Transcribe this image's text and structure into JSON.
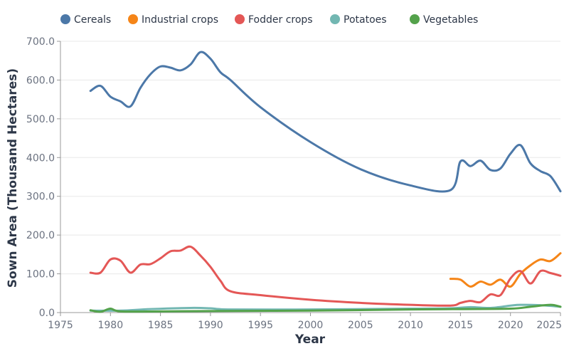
{
  "chart_data": {
    "type": "line",
    "title": "",
    "xlabel": "Year",
    "ylabel": "Sown Area (Thousand Hectares)",
    "xlim": [
      1975,
      2025
    ],
    "ylim": [
      0,
      700
    ],
    "xticks": [
      1975,
      1980,
      1985,
      1990,
      1995,
      2000,
      2005,
      2010,
      2015,
      2020,
      2025
    ],
    "yticks": [
      0,
      100,
      200,
      300,
      400,
      500,
      600,
      700
    ],
    "ytick_labels": [
      "0.0",
      "100.0",
      "200.0",
      "300.0",
      "400.0",
      "500.0",
      "600.0",
      "700.0"
    ],
    "grid": true,
    "legend_position": "top",
    "series": [
      {
        "name": "Cereals",
        "color": "#4c78a8",
        "points": [
          [
            1978,
            572
          ],
          [
            1979,
            585
          ],
          [
            1980,
            557
          ],
          [
            1981,
            545
          ],
          [
            1982,
            532
          ],
          [
            1983,
            580
          ],
          [
            1984,
            615
          ],
          [
            1985,
            635
          ],
          [
            1986,
            632
          ],
          [
            1987,
            625
          ],
          [
            1988,
            640
          ],
          [
            1989,
            672
          ],
          [
            1990,
            655
          ],
          [
            1991,
            620
          ],
          [
            1992,
            600
          ],
          [
            1995,
            530
          ],
          [
            2000,
            440
          ],
          [
            2005,
            370
          ],
          [
            2010,
            328
          ],
          [
            2014,
            316
          ],
          [
            2015,
            390
          ],
          [
            2016,
            378
          ],
          [
            2017,
            392
          ],
          [
            2018,
            368
          ],
          [
            2019,
            372
          ],
          [
            2020,
            410
          ],
          [
            2021,
            432
          ],
          [
            2022,
            385
          ],
          [
            2023,
            365
          ],
          [
            2024,
            352
          ],
          [
            2025,
            313
          ]
        ]
      },
      {
        "name": "Industrial crops",
        "color": "#f58518",
        "points": [
          [
            2014,
            87
          ],
          [
            2015,
            85
          ],
          [
            2016,
            67
          ],
          [
            2017,
            80
          ],
          [
            2018,
            72
          ],
          [
            2019,
            85
          ],
          [
            2020,
            67
          ],
          [
            2021,
            100
          ],
          [
            2022,
            122
          ],
          [
            2023,
            137
          ],
          [
            2024,
            133
          ],
          [
            2025,
            153
          ]
        ]
      },
      {
        "name": "Fodder crops",
        "color": "#e45756",
        "points": [
          [
            1978,
            103
          ],
          [
            1979,
            103
          ],
          [
            1980,
            137
          ],
          [
            1981,
            134
          ],
          [
            1982,
            103
          ],
          [
            1983,
            124
          ],
          [
            1984,
            125
          ],
          [
            1985,
            140
          ],
          [
            1986,
            158
          ],
          [
            1987,
            160
          ],
          [
            1988,
            170
          ],
          [
            1989,
            147
          ],
          [
            1990,
            118
          ],
          [
            1991,
            82
          ],
          [
            1992,
            55
          ],
          [
            1995,
            45
          ],
          [
            2000,
            33
          ],
          [
            2005,
            25
          ],
          [
            2010,
            20
          ],
          [
            2014,
            18
          ],
          [
            2015,
            25
          ],
          [
            2016,
            30
          ],
          [
            2017,
            27
          ],
          [
            2018,
            47
          ],
          [
            2019,
            45
          ],
          [
            2020,
            88
          ],
          [
            2021,
            107
          ],
          [
            2022,
            75
          ],
          [
            2023,
            107
          ],
          [
            2024,
            102
          ],
          [
            2025,
            95
          ]
        ]
      },
      {
        "name": "Potatoes",
        "color": "#72b7b2",
        "points": [
          [
            1978,
            5
          ],
          [
            1981,
            5
          ],
          [
            1984,
            9
          ],
          [
            1988,
            12
          ],
          [
            1990,
            11
          ],
          [
            1992,
            8
          ],
          [
            2000,
            8
          ],
          [
            2010,
            10
          ],
          [
            2014,
            11
          ],
          [
            2016,
            14
          ],
          [
            2018,
            12
          ],
          [
            2020,
            18
          ],
          [
            2021,
            20
          ],
          [
            2023,
            19
          ],
          [
            2025,
            15
          ]
        ]
      },
      {
        "name": "Vegetables",
        "color": "#54a24b",
        "points": [
          [
            1978,
            6
          ],
          [
            1979,
            2
          ],
          [
            1980,
            10
          ],
          [
            1981,
            3
          ],
          [
            1985,
            3
          ],
          [
            1990,
            4
          ],
          [
            2000,
            5
          ],
          [
            2010,
            8
          ],
          [
            2015,
            9
          ],
          [
            2020,
            10
          ],
          [
            2022,
            15
          ],
          [
            2024,
            20
          ],
          [
            2025,
            15
          ]
        ]
      }
    ]
  }
}
